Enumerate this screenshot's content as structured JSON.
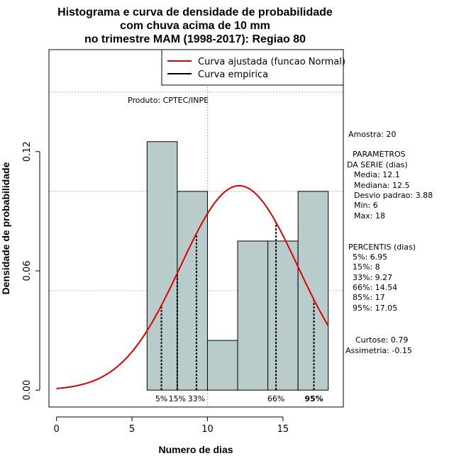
{
  "chart_data": {
    "type": "histogram",
    "title_lines": [
      "Histograma e curva de densidade de probabilidade",
      "com chuva acima de 10 mm",
      "no trimestre MAM (1998-2017): Regiao 80"
    ],
    "xlabel": "Numero de dias",
    "ylabel": "Densidade de probabilidade",
    "xlim": [
      -0.5,
      19
    ],
    "ylim": [
      -0.0085,
      0.1713
    ],
    "x_ticks": [
      0,
      5,
      10,
      15
    ],
    "x_tick_labels": [
      "0",
      "5",
      "10",
      "15"
    ],
    "y_ticks": [
      0.0,
      0.06,
      0.12
    ],
    "y_tick_labels": [
      "0.00",
      "0.06",
      "0.12"
    ],
    "grid_x": [
      10
    ],
    "grid_y": [
      0.05,
      0.1,
      0.15
    ],
    "bars": [
      {
        "x0": 6,
        "x1": 8,
        "density": 0.125
      },
      {
        "x0": 8,
        "x1": 10,
        "density": 0.1
      },
      {
        "x0": 10,
        "x1": 12,
        "density": 0.025
      },
      {
        "x0": 12,
        "x1": 14,
        "density": 0.075
      },
      {
        "x0": 14,
        "x1": 16,
        "density": 0.075
      },
      {
        "x0": 16,
        "x1": 18,
        "density": 0.1
      }
    ],
    "bar_color": "#b9cccb",
    "normal_curve": {
      "name": "Curva ajustada (funcao Normal)",
      "mean": 12.1,
      "sd": 3.88,
      "x_from": 0,
      "x_to": 18,
      "color": "#dd0000"
    },
    "empirical_curve": {
      "name": "Curva empirica",
      "color": "#000000"
    },
    "legend_position": "top-right",
    "percentile_lines": [
      {
        "label": "5%",
        "x": 6.95
      },
      {
        "label": "15%",
        "x": 8.0
      },
      {
        "label": "33%",
        "x": 9.27
      },
      {
        "label": "66%",
        "x": 14.54
      },
      {
        "label": "95%",
        "x": 17.05
      }
    ],
    "product_label": "Produto: CPTEC/INPE"
  },
  "stats_panel": {
    "sample": "Amostra: 20",
    "params_title_1": "PARAMETROS",
    "params_title_2": "DA SERIE (dias)",
    "media": "Media: 12.1",
    "mediana": "Mediana: 12.5",
    "desvio": "Desvio padrao: 3.88",
    "min": "Min: 6",
    "max": "Max: 18",
    "perc_title": "PERCENTIS (dias)",
    "p5": "5%: 6.95",
    "p15": "15%: 8",
    "p33": "33%: 9.27",
    "p66": "66%: 14.54",
    "p85": "85%: 17",
    "p95": "95%: 17.05",
    "curtose": "Curtose: 0.79",
    "assimetria": "Assimetria: -0.15"
  }
}
